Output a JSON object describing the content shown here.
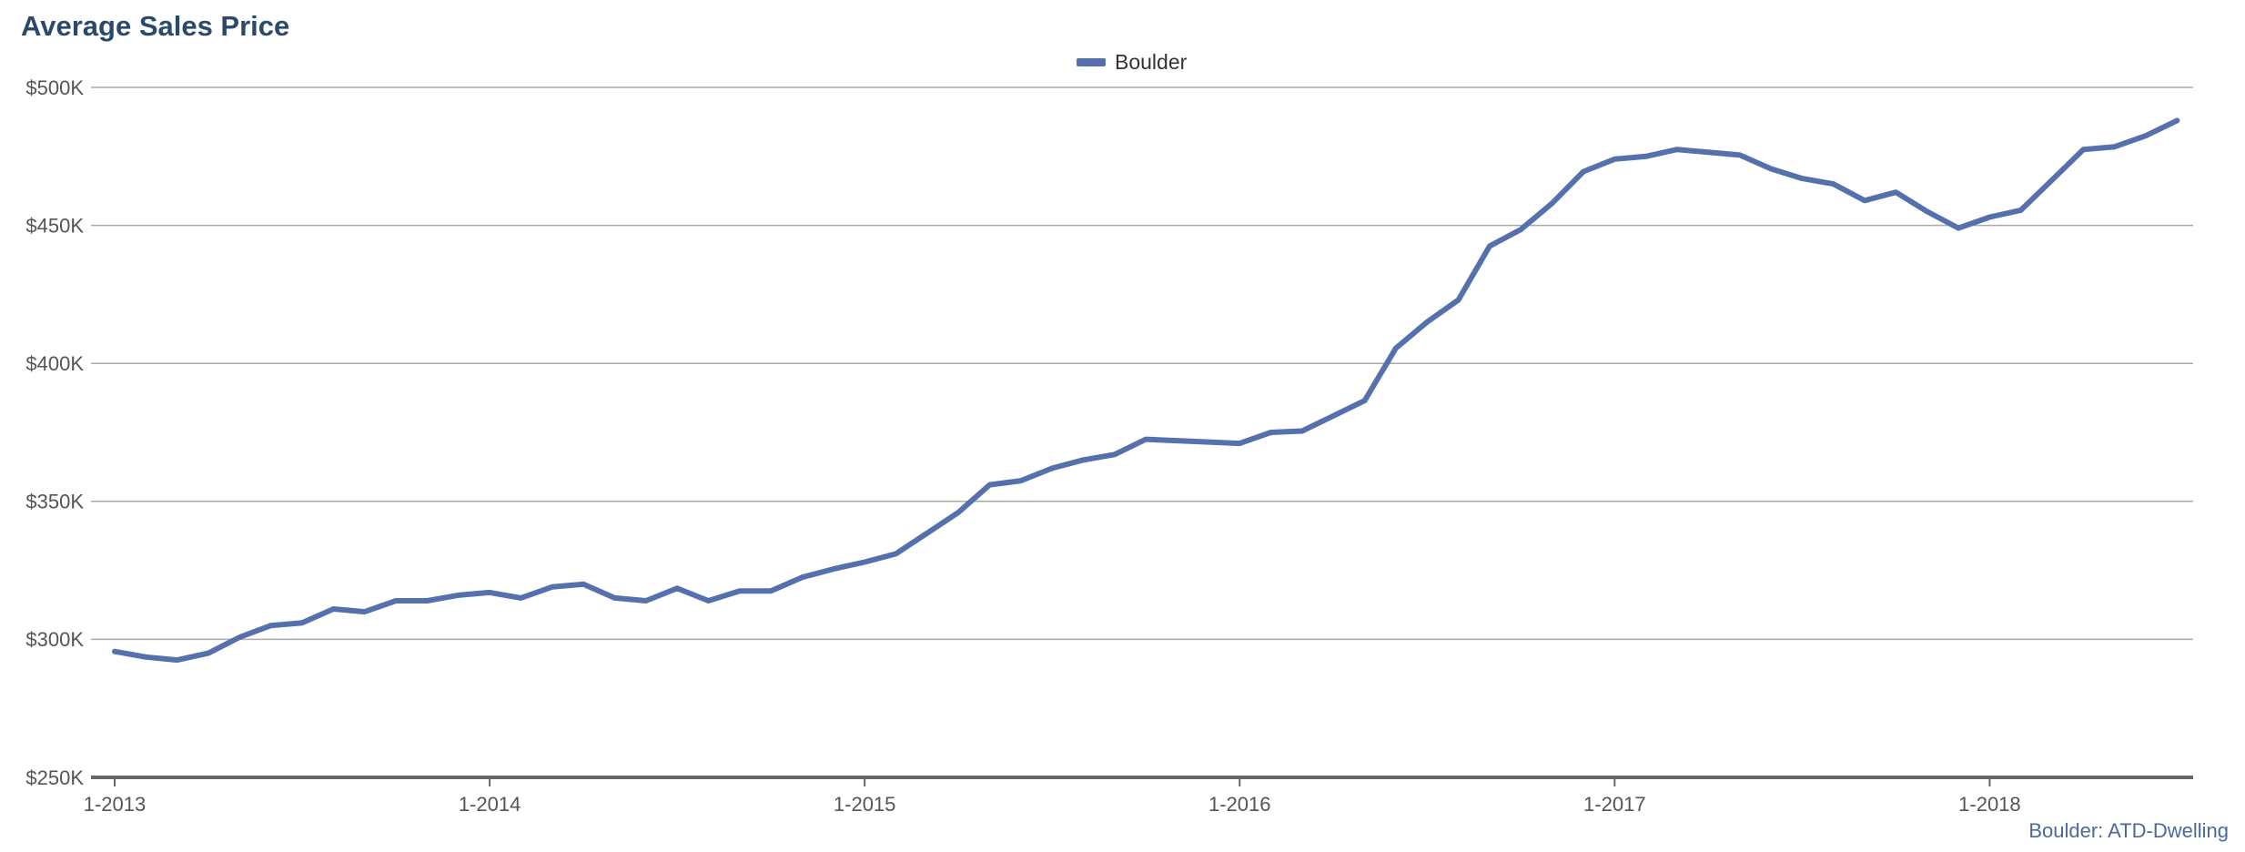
{
  "chart_data": {
    "type": "line",
    "title": "Average Sales Price",
    "source": "Boulder: ATD-Dwelling",
    "categories": [
      "1-2013",
      null,
      null,
      null,
      null,
      null,
      null,
      null,
      null,
      null,
      null,
      null,
      "1-2014",
      null,
      null,
      null,
      null,
      null,
      null,
      null,
      null,
      null,
      null,
      null,
      "1-2015",
      null,
      null,
      null,
      null,
      null,
      null,
      null,
      null,
      null,
      null,
      null,
      "1-2016",
      null,
      null,
      null,
      null,
      null,
      null,
      null,
      null,
      null,
      null,
      null,
      "1-2017",
      null,
      null,
      null,
      null,
      null,
      null,
      null,
      null,
      null,
      null,
      null,
      "1-2018",
      null,
      null,
      null,
      null,
      null,
      null
    ],
    "series": [
      {
        "name": "Boulder",
        "color": "#5470ad",
        "values": [
          295600,
          293600,
          292500,
          295000,
          300800,
          305000,
          306000,
          311000,
          310000,
          314000,
          314000,
          316000,
          317000,
          315000,
          319000,
          320000,
          315000,
          314000,
          318500,
          314000,
          317500,
          317500,
          322500,
          325500,
          328000,
          331000,
          338500,
          346000,
          356000,
          357500,
          362000,
          365000,
          367000,
          372500,
          372000,
          371500,
          371000,
          375000,
          375500,
          381000,
          386500,
          405500,
          415000,
          423000,
          442500,
          448500,
          458000,
          469500,
          474000,
          475000,
          477500,
          476500,
          475500,
          470500,
          467000,
          465000,
          459000,
          462000,
          455000,
          449000,
          453000,
          455500,
          466500,
          477500,
          478500,
          482500,
          488000
        ]
      }
    ],
    "ylim": [
      250000,
      500000
    ],
    "yticks": [
      {
        "value": 250000,
        "label": "$250K"
      },
      {
        "value": 300000,
        "label": "$300K"
      },
      {
        "value": 350000,
        "label": "$350K"
      },
      {
        "value": 400000,
        "label": "$400K"
      },
      {
        "value": 450000,
        "label": "$450K"
      },
      {
        "value": 500000,
        "label": "$500K"
      }
    ],
    "grid": true,
    "legend": "top"
  }
}
